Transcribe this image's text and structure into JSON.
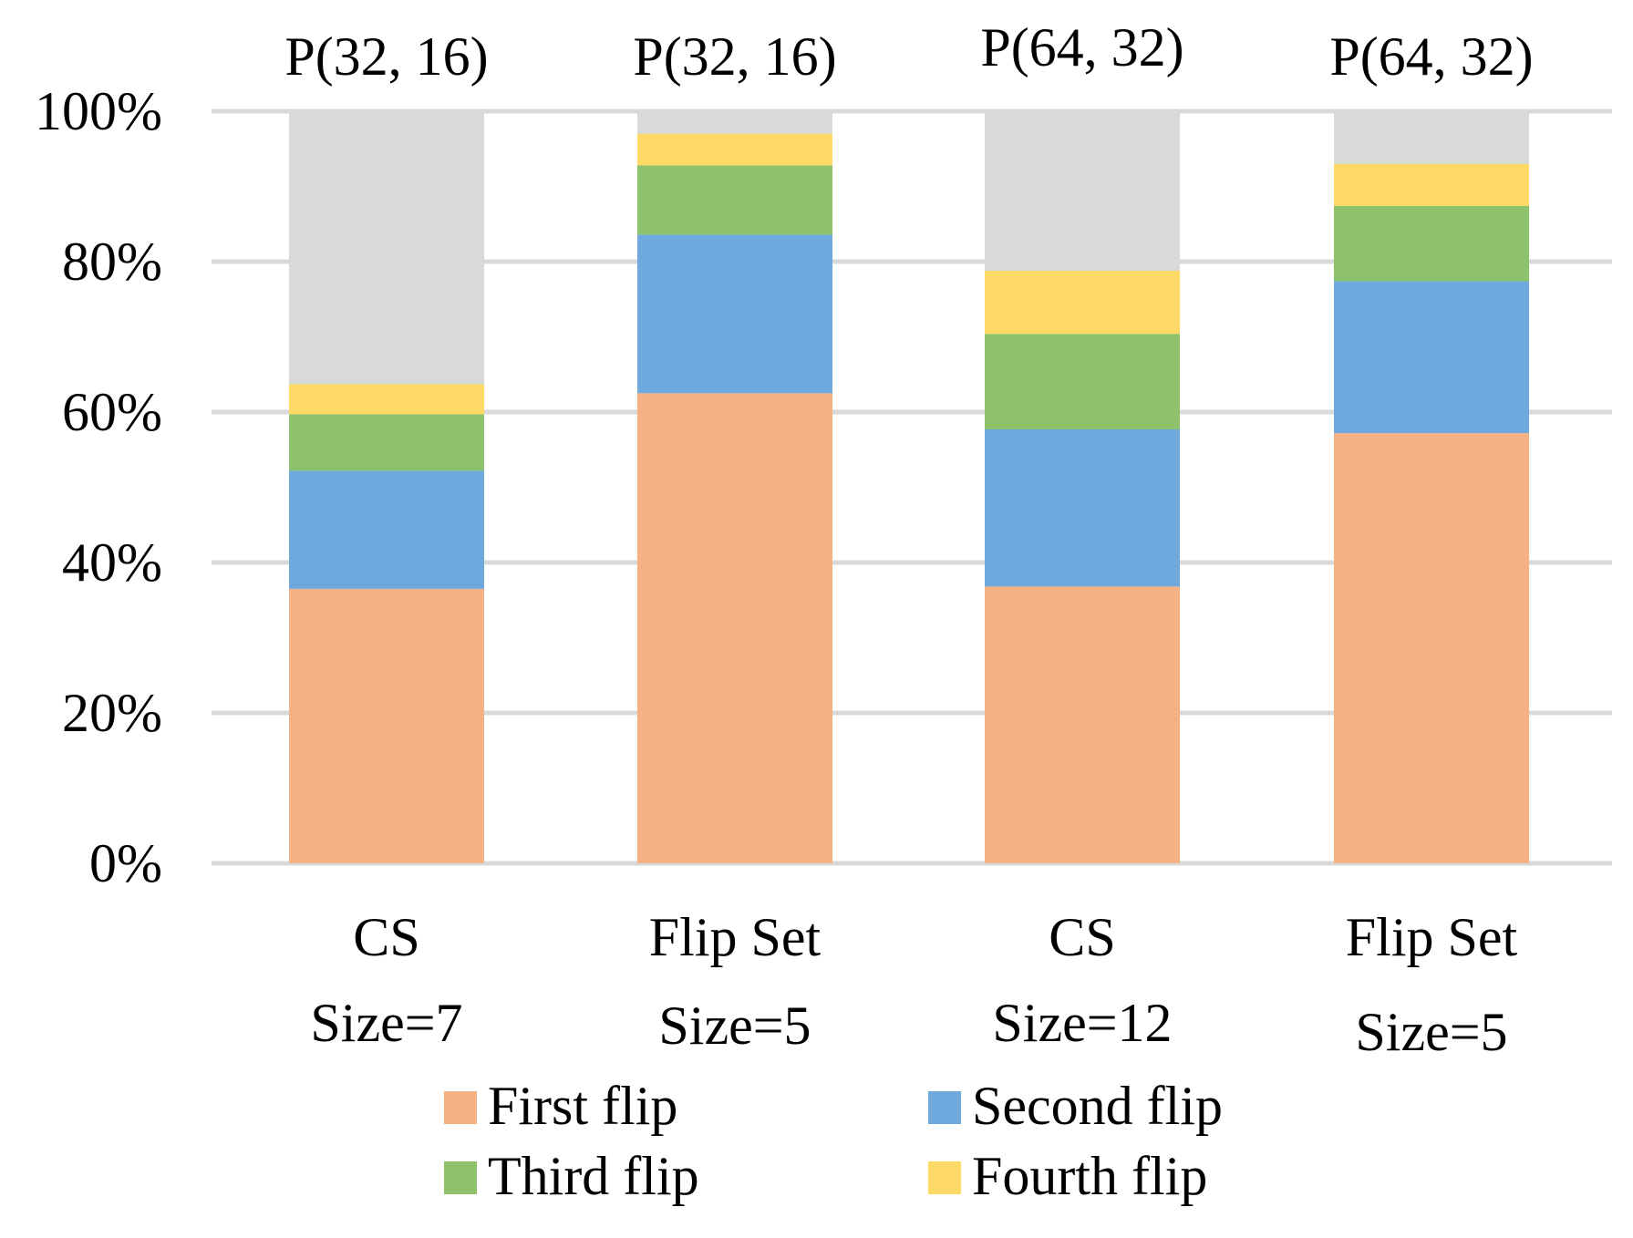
{
  "chart_data": {
    "type": "bar",
    "stacked": true,
    "percent": true,
    "title": "",
    "xlabel": "",
    "ylabel": "",
    "ylim": [
      0,
      100
    ],
    "yticks": [
      "0%",
      "20%",
      "40%",
      "60%",
      "80%",
      "100%"
    ],
    "ytick_values": [
      0,
      20,
      40,
      60,
      80,
      100
    ],
    "grid": true,
    "categories": [
      {
        "top": "P(32, 16)",
        "line1": "CS",
        "line2": "Size=7"
      },
      {
        "top": "P(32, 16)",
        "line1": "Flip Set",
        "line2": "Size=5"
      },
      {
        "top": "P(64, 32)",
        "line1": "CS",
        "line2": "Size=12"
      },
      {
        "top": "P(64, 32)",
        "line1": "Flip Set",
        "line2": "Size=5"
      }
    ],
    "series": [
      {
        "name": "First flip",
        "color": "#F4B183",
        "values": [
          36.5,
          62.5,
          36.8,
          57.2
        ]
      },
      {
        "name": "Second flip",
        "color": "#6FA8DC",
        "values": [
          15.7,
          21.1,
          20.9,
          20.2
        ]
      },
      {
        "name": "Third flip",
        "color": "#8DC26A",
        "values": [
          7.5,
          9.2,
          12.7,
          10.0
        ]
      },
      {
        "name": "Fourth flip",
        "color": "#FFD966",
        "values": [
          4.0,
          4.2,
          8.4,
          5.6
        ]
      },
      {
        "name": "",
        "color": "#D9D9D9",
        "values": [
          36.3,
          3.0,
          21.2,
          7.0
        ]
      }
    ],
    "legend": {
      "position": "bottom",
      "entries": [
        "First flip",
        "Second flip",
        "Third flip",
        "Fourth flip"
      ]
    }
  }
}
